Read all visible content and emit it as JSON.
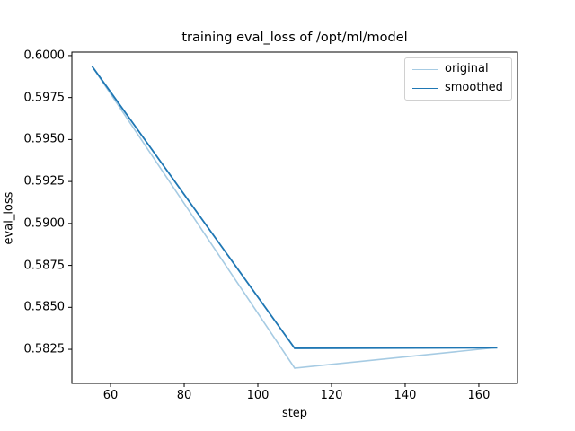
{
  "chart_data": {
    "type": "line",
    "title": "training eval_loss of /opt/ml/model",
    "xlabel": "step",
    "ylabel": "eval_loss",
    "x": [
      55,
      110,
      165
    ],
    "series": [
      {
        "name": "original",
        "color": "#a6cbe3",
        "values": [
          0.59936,
          0.58138,
          0.58261
        ]
      },
      {
        "name": "smoothed",
        "color": "#1f77b4",
        "values": [
          0.59936,
          0.58256,
          0.58259
        ]
      }
    ],
    "xlim": [
      49.5,
      170.5
    ],
    "ylim": [
      0.58047,
      0.60021
    ],
    "xticks": [
      60,
      80,
      100,
      120,
      140,
      160
    ],
    "yticks": [
      "0.5825",
      "0.5850",
      "0.5875",
      "0.5900",
      "0.5925",
      "0.5950",
      "0.5975",
      "0.6000"
    ],
    "grid": false,
    "legend_position": "upper right"
  },
  "legend": {
    "items": [
      {
        "label": "original",
        "color": "#a6cbe3"
      },
      {
        "label": "smoothed",
        "color": "#1f77b4"
      }
    ]
  }
}
